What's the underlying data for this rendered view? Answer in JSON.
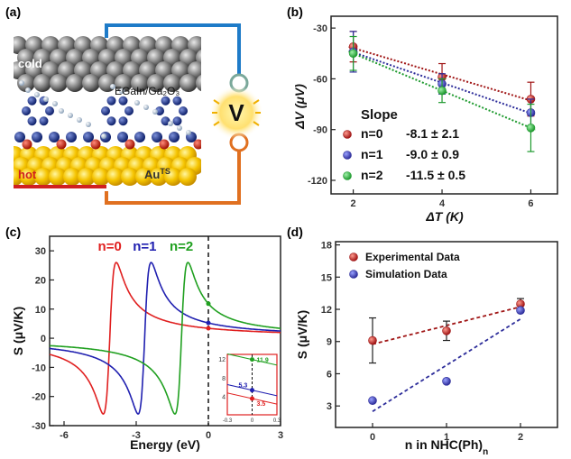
{
  "panels": {
    "a": {
      "label": "(a)",
      "labels": {
        "cold": "cold",
        "hot": "hot",
        "top_electrode": "EGaIn/Ga₂O₃",
        "bottom_electrode_main": "Au",
        "bottom_electrode_sup": "TS",
        "meter": "V"
      },
      "colors": {
        "cold_wire": "#1e7bc8",
        "hot_wire": "#e07020",
        "gold": "#f5c400",
        "red_wire": "#d02020"
      }
    },
    "b": {
      "label": "(b)"
    },
    "c": {
      "label": "(c)"
    },
    "d": {
      "label": "(d)"
    }
  },
  "chart_data": [
    {
      "panel": "b",
      "type": "scatter",
      "xlabel": "ΔT (K)",
      "ylabel": "ΔV (μV)",
      "xlim": [
        1.5,
        6.6
      ],
      "ylim": [
        -128,
        -23
      ],
      "xticks": [
        2,
        4,
        6
      ],
      "yticks": [
        -30,
        -60,
        -90,
        -120
      ],
      "legend_title": "Slope",
      "legend_position": "bottom-left",
      "series": [
        {
          "name": "n=0",
          "slope": "-8.1 ± 2.1",
          "color": "#a01515",
          "x": [
            2,
            4,
            6
          ],
          "y": [
            -41,
            -59,
            -72
          ],
          "err": [
            9,
            8,
            10
          ]
        },
        {
          "name": "n=1",
          "slope": "-9.0 ± 0.9",
          "color": "#2d2d9a",
          "x": [
            2,
            4,
            6
          ],
          "y": [
            -44,
            -63,
            -80
          ],
          "err": [
            12,
            6,
            8
          ]
        },
        {
          "name": "n=2",
          "slope": "-11.5 ± 0.5",
          "color": "#1e9a2e",
          "x": [
            2,
            4,
            6
          ],
          "y": [
            -45,
            -67,
            -89
          ],
          "err": [
            10,
            7,
            14
          ]
        }
      ]
    },
    {
      "panel": "c",
      "type": "line",
      "xlabel": "Energy (eV)",
      "ylabel": "S (μV/K)",
      "xlim": [
        -6.6,
        3
      ],
      "ylim": [
        -30,
        35
      ],
      "xticks": [
        -6,
        -3,
        0,
        3
      ],
      "yticks": [
        30,
        20,
        10,
        0,
        -10,
        -20,
        -30
      ],
      "series": [
        {
          "name": "n=0",
          "color": "#e02020",
          "center": -4.1,
          "width": 0.27,
          "amplitude": 26
        },
        {
          "name": "n=1",
          "color": "#2020b0",
          "center": -2.65,
          "width": 0.27,
          "amplitude": 26
        },
        {
          "name": "n=2",
          "color": "#20a020",
          "center": -1.12,
          "width": 0.27,
          "amplitude": 26
        }
      ],
      "inset": {
        "xlim": [
          -0.3,
          0.3
        ],
        "ylim": [
          0,
          13
        ],
        "xticks": [
          -0.3,
          0,
          0.3
        ],
        "yticks": [
          12,
          8,
          4
        ],
        "points": [
          {
            "label": "11.9",
            "y": 11.9,
            "color": "#20a020"
          },
          {
            "label": "5.3",
            "y": 5.3,
            "color": "#2020b0"
          },
          {
            "label": "3.5",
            "y": 3.5,
            "color": "#e02020"
          }
        ]
      }
    },
    {
      "panel": "d",
      "type": "scatter",
      "xlabel": "n in NHC(Ph)",
      "xlabel_sub": "n",
      "ylabel": "S (μV/K)",
      "xlim": [
        -0.5,
        2.5
      ],
      "ylim": [
        1,
        18.3
      ],
      "xticks": [
        0,
        1,
        2
      ],
      "yticks": [
        3,
        6,
        9,
        12,
        15,
        18
      ],
      "legend_position": "top-left",
      "series": [
        {
          "name": "Experimental Data",
          "color": "#a01515",
          "x": [
            0,
            1,
            2
          ],
          "y": [
            9.1,
            10.0,
            12.5
          ],
          "err": [
            2.1,
            0.9,
            0.5
          ]
        },
        {
          "name": "Simulation Data",
          "color": "#2d2d9a",
          "x": [
            0,
            1,
            2
          ],
          "y": [
            3.5,
            5.3,
            11.9
          ]
        }
      ]
    }
  ]
}
